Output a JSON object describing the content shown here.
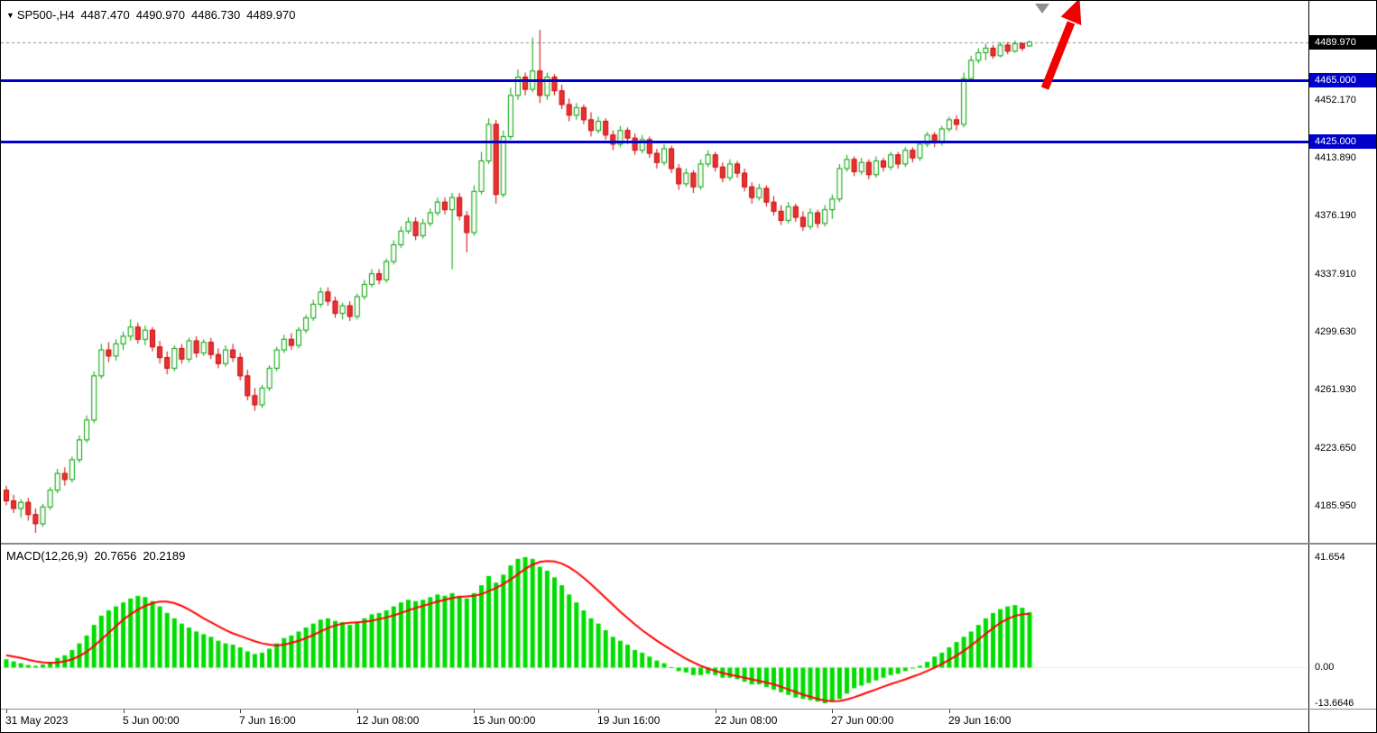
{
  "info_line": {
    "symbol_period": "SP500-,H4",
    "open": "4487.470",
    "high": "4490.970",
    "low": "4486.730",
    "close": "4489.970"
  },
  "indicator_label": {
    "name": "MACD(12,26,9)",
    "main_value": "20.7656",
    "signal_value": "20.2189"
  },
  "icons": {
    "symbol_marker": "symbol-triangle-icon",
    "trend_arrow_color": "#F20000",
    "scroll_marker_color": "#8f8f8f"
  },
  "chart_data": [
    {
      "type": "candlestick",
      "title": "SP500-,H4",
      "ylim": [
        4161.5,
        4517.0
      ],
      "grid": false,
      "current_price": {
        "text": "4489.970",
        "value": 4489.97,
        "badge_bg": "#000000",
        "badge_fg": "#ffffff",
        "line_style": "dashed-gray"
      },
      "levels": [
        {
          "text": "4465.000",
          "value": 4465.0,
          "color": "#0000CD"
        },
        {
          "text": "4425.000",
          "value": 4425.0,
          "color": "#0000CD"
        }
      ],
      "y_ticks": [
        {
          "text": "4452.170",
          "value": 4452.17
        },
        {
          "text": "4413.890",
          "value": 4413.89
        },
        {
          "text": "4376.190",
          "value": 4376.19
        },
        {
          "text": "4337.910",
          "value": 4337.91
        },
        {
          "text": "4299.630",
          "value": 4299.63
        },
        {
          "text": "4261.930",
          "value": 4261.93
        },
        {
          "text": "4223.650",
          "value": 4223.65
        },
        {
          "text": "4185.950",
          "value": 4185.95
        }
      ],
      "x_ticks": [
        {
          "text": "31 May 2023",
          "bar": 0
        },
        {
          "text": "5 Jun 00:00",
          "bar": 16
        },
        {
          "text": "7 Jun 16:00",
          "bar": 32
        },
        {
          "text": "12 Jun 08:00",
          "bar": 48
        },
        {
          "text": "15 Jun 00:00",
          "bar": 64
        },
        {
          "text": "19 Jun 16:00",
          "bar": 81
        },
        {
          "text": "22 Jun 08:00",
          "bar": 97
        },
        {
          "text": "27 Jun 00:00",
          "bar": 113
        },
        {
          "text": "29 Jun 16:00",
          "bar": 129
        }
      ],
      "colors": {
        "up_body": "#ffffff",
        "up_edge": "#00A000",
        "down_body": "#E83232",
        "down_edge": "#C80000",
        "price_line": "#8a8a8a"
      },
      "ohlc": [
        [
          4196,
          4199,
          4186,
          4189
        ],
        [
          4189,
          4193,
          4181,
          4184
        ],
        [
          4184,
          4190,
          4178,
          4188
        ],
        [
          4188,
          4191,
          4176,
          4180
        ],
        [
          4180,
          4184,
          4168,
          4174
        ],
        [
          4174,
          4187,
          4172,
          4185
        ],
        [
          4185,
          4198,
          4183,
          4196
        ],
        [
          4196,
          4210,
          4194,
          4207
        ],
        [
          4207,
          4211,
          4199,
          4203
        ],
        [
          4203,
          4218,
          4201,
          4216
        ],
        [
          4216,
          4232,
          4214,
          4229
        ],
        [
          4229,
          4245,
          4227,
          4242
        ],
        [
          4242,
          4274,
          4240,
          4271
        ],
        [
          4271,
          4292,
          4269,
          4288
        ],
        [
          4288,
          4293,
          4280,
          4284
        ],
        [
          4284,
          4295,
          4281,
          4292
        ],
        [
          4292,
          4300,
          4288,
          4297
        ],
        [
          4297,
          4308,
          4294,
          4303
        ],
        [
          4303,
          4306,
          4292,
          4295
        ],
        [
          4295,
          4304,
          4291,
          4301
        ],
        [
          4301,
          4303,
          4287,
          4290
        ],
        [
          4290,
          4294,
          4279,
          4283
        ],
        [
          4283,
          4287,
          4272,
          4276
        ],
        [
          4276,
          4291,
          4274,
          4289
        ],
        [
          4289,
          4292,
          4279,
          4282
        ],
        [
          4282,
          4296,
          4280,
          4294
        ],
        [
          4294,
          4297,
          4283,
          4286
        ],
        [
          4286,
          4295,
          4284,
          4293
        ],
        [
          4293,
          4296,
          4282,
          4285
        ],
        [
          4285,
          4289,
          4276,
          4279
        ],
        [
          4279,
          4291,
          4277,
          4288
        ],
        [
          4288,
          4292,
          4280,
          4283
        ],
        [
          4283,
          4286,
          4268,
          4271
        ],
        [
          4271,
          4275,
          4255,
          4258
        ],
        [
          4258,
          4263,
          4248,
          4252
        ],
        [
          4252,
          4265,
          4250,
          4263
        ],
        [
          4263,
          4278,
          4261,
          4276
        ],
        [
          4276,
          4290,
          4274,
          4288
        ],
        [
          4288,
          4298,
          4286,
          4295
        ],
        [
          4295,
          4299,
          4288,
          4291
        ],
        [
          4291,
          4303,
          4289,
          4301
        ],
        [
          4301,
          4311,
          4299,
          4309
        ],
        [
          4309,
          4321,
          4307,
          4318
        ],
        [
          4318,
          4329,
          4316,
          4326
        ],
        [
          4326,
          4329,
          4317,
          4320
        ],
        [
          4320,
          4323,
          4309,
          4312
        ],
        [
          4312,
          4319,
          4308,
          4317
        ],
        [
          4317,
          4320,
          4307,
          4310
        ],
        [
          4310,
          4325,
          4308,
          4323
        ],
        [
          4323,
          4334,
          4321,
          4331
        ],
        [
          4331,
          4341,
          4329,
          4338
        ],
        [
          4338,
          4341,
          4331,
          4334
        ],
        [
          4334,
          4348,
          4332,
          4346
        ],
        [
          4346,
          4360,
          4344,
          4357
        ],
        [
          4357,
          4369,
          4355,
          4366
        ],
        [
          4366,
          4375,
          4364,
          4372
        ],
        [
          4372,
          4375,
          4360,
          4363
        ],
        [
          4363,
          4374,
          4361,
          4371
        ],
        [
          4371,
          4381,
          4369,
          4378
        ],
        [
          4378,
          4388,
          4376,
          4385
        ],
        [
          4385,
          4388,
          4377,
          4380
        ],
        [
          4380,
          4391,
          4341,
          4388
        ],
        [
          4388,
          4391,
          4373,
          4376
        ],
        [
          4376,
          4379,
          4352,
          4365
        ],
        [
          4365,
          4396,
          4363,
          4392
        ],
        [
          4392,
          4418,
          4390,
          4412
        ],
        [
          4412,
          4440,
          4410,
          4436
        ],
        [
          4436,
          4439,
          4384,
          4390
        ],
        [
          4390,
          4432,
          4388,
          4428
        ],
        [
          4428,
          4460,
          4426,
          4455
        ],
        [
          4455,
          4472,
          4452,
          4467
        ],
        [
          4467,
          4470,
          4455,
          4459
        ],
        [
          4459,
          4493,
          4457,
          4471
        ],
        [
          4471,
          4498,
          4450,
          4455
        ],
        [
          4455,
          4470,
          4452,
          4467
        ],
        [
          4467,
          4469,
          4455,
          4458
        ],
        [
          4458,
          4462,
          4446,
          4449
        ],
        [
          4449,
          4453,
          4438,
          4442
        ],
        [
          4442,
          4450,
          4439,
          4447
        ],
        [
          4447,
          4449,
          4436,
          4439
        ],
        [
          4439,
          4444,
          4428,
          4432
        ],
        [
          4432,
          4441,
          4430,
          4438
        ],
        [
          4438,
          4440,
          4426,
          4429
        ],
        [
          4429,
          4432,
          4419,
          4423
        ],
        [
          4423,
          4435,
          4421,
          4432
        ],
        [
          4432,
          4434,
          4423,
          4427
        ],
        [
          4427,
          4430,
          4416,
          4419
        ],
        [
          4419,
          4429,
          4417,
          4426
        ],
        [
          4426,
          4428,
          4414,
          4417
        ],
        [
          4417,
          4420,
          4407,
          4411
        ],
        [
          4411,
          4423,
          4409,
          4420
        ],
        [
          4420,
          4422,
          4404,
          4407
        ],
        [
          4407,
          4410,
          4393,
          4397
        ],
        [
          4397,
          4407,
          4395,
          4404
        ],
        [
          4404,
          4406,
          4391,
          4395
        ],
        [
          4395,
          4413,
          4393,
          4410
        ],
        [
          4410,
          4419,
          4408,
          4416
        ],
        [
          4416,
          4418,
          4405,
          4408
        ],
        [
          4408,
          4411,
          4398,
          4401
        ],
        [
          4401,
          4413,
          4399,
          4410
        ],
        [
          4410,
          4412,
          4401,
          4404
        ],
        [
          4404,
          4407,
          4392,
          4395
        ],
        [
          4395,
          4398,
          4384,
          4388
        ],
        [
          4388,
          4397,
          4386,
          4394
        ],
        [
          4394,
          4396,
          4382,
          4385
        ],
        [
          4385,
          4389,
          4376,
          4379
        ],
        [
          4379,
          4383,
          4370,
          4373
        ],
        [
          4373,
          4385,
          4371,
          4382
        ],
        [
          4382,
          4384,
          4372,
          4375
        ],
        [
          4375,
          4379,
          4366,
          4369
        ],
        [
          4369,
          4381,
          4367,
          4378
        ],
        [
          4378,
          4380,
          4368,
          4371
        ],
        [
          4371,
          4383,
          4369,
          4380
        ],
        [
          4380,
          4390,
          4374,
          4387
        ],
        [
          4387,
          4410,
          4385,
          4407
        ],
        [
          4407,
          4416,
          4405,
          4413
        ],
        [
          4413,
          4415,
          4402,
          4405
        ],
        [
          4405,
          4414,
          4403,
          4411
        ],
        [
          4411,
          4413,
          4400,
          4403
        ],
        [
          4403,
          4415,
          4401,
          4412
        ],
        [
          4412,
          4414,
          4405,
          4408
        ],
        [
          4408,
          4418,
          4406,
          4416
        ],
        [
          4416,
          4418,
          4407,
          4410
        ],
        [
          4410,
          4421,
          4408,
          4419
        ],
        [
          4419,
          4421,
          4411,
          4414
        ],
        [
          4414,
          4425,
          4412,
          4423
        ],
        [
          4423,
          4431,
          4421,
          4429
        ],
        [
          4429,
          4431,
          4421,
          4424
        ],
        [
          4424,
          4435,
          4422,
          4433
        ],
        [
          4433,
          4441,
          4431,
          4439
        ],
        [
          4439,
          4442,
          4432,
          4436
        ],
        [
          4436,
          4470,
          4434,
          4466
        ],
        [
          4466,
          4481,
          4464,
          4478
        ],
        [
          4478,
          4486,
          4476,
          4483
        ],
        [
          4483,
          4489,
          4478,
          4486
        ],
        [
          4486,
          4488,
          4479,
          4481
        ],
        [
          4481,
          4490,
          4480,
          4488
        ],
        [
          4488,
          4490,
          4482,
          4484
        ],
        [
          4484,
          4491,
          4483,
          4489
        ],
        [
          4489,
          4490,
          4484,
          4486
        ],
        [
          4487.47,
          4490.97,
          4486.73,
          4489.97
        ]
      ]
    },
    {
      "type": "macd",
      "label": "MACD(12,26,9)",
      "last_main": 20.7656,
      "last_signal": 20.2189,
      "ylim": [
        -15.7,
        46.4
      ],
      "y_ticks": [
        {
          "text": "41.654",
          "value": 41.654
        },
        {
          "text": "0.00",
          "value": 0.0
        },
        {
          "text": "-13.6646",
          "value": -13.6646
        }
      ],
      "colors": {
        "histogram": "#00DC00",
        "signal": "#FF0000",
        "zero_line": "#c8c8c8"
      },
      "histogram": [
        3,
        2.2,
        1.5,
        0.8,
        0.5,
        1,
        2,
        3.5,
        4.5,
        6.5,
        9,
        12,
        16,
        19.5,
        21.5,
        23,
        24.5,
        26,
        27,
        26.5,
        25,
        23,
        20.5,
        18.5,
        16.5,
        15,
        13.5,
        12.5,
        11.5,
        10,
        9,
        8.5,
        7.5,
        6,
        5,
        5.5,
        7,
        9,
        11,
        12,
        13.5,
        15,
        16.5,
        18,
        18.5,
        17.5,
        17,
        16,
        17,
        18.5,
        20,
        20.5,
        21.5,
        23,
        24.5,
        25.5,
        25,
        25.5,
        26.5,
        27.5,
        27,
        28,
        27,
        26,
        28,
        31,
        34.5,
        32,
        35,
        38.5,
        41,
        41.654,
        41,
        38,
        36.5,
        34,
        31,
        27.5,
        24.5,
        21.5,
        18.5,
        16.5,
        14,
        11.5,
        10,
        8.5,
        6.5,
        5.5,
        4,
        2.5,
        1.5,
        0,
        -1.5,
        -2,
        -3,
        -3,
        -2.5,
        -3,
        -4,
        -4,
        -4.5,
        -5.5,
        -6.5,
        -6.5,
        -7.5,
        -8.5,
        -9.5,
        -10.5,
        -11.5,
        -12,
        -12.5,
        -13,
        -13.6646,
        -13,
        -12,
        -10,
        -8,
        -7,
        -6,
        -5,
        -4,
        -3,
        -2.5,
        -1.5,
        -0.5,
        0.5,
        2,
        4,
        5.5,
        7.5,
        9.5,
        11.5,
        13.5,
        16,
        18.5,
        20.5,
        22,
        23,
        23.5,
        22.5,
        20.7656
      ],
      "signal": [
        4.5,
        4,
        3.5,
        2.8,
        2.2,
        1.8,
        1.6,
        1.8,
        2.2,
        3,
        4.2,
        5.8,
        8,
        10.5,
        13,
        15.5,
        18,
        20,
        21.8,
        23.2,
        24.2,
        24.8,
        24.8,
        24.2,
        23.2,
        21.8,
        20.2,
        18.5,
        17,
        15.5,
        14,
        12.8,
        11.8,
        10.8,
        9.8,
        9,
        8.5,
        8.2,
        8.5,
        9.2,
        10,
        11,
        12.2,
        13.5,
        14.8,
        15.8,
        16.5,
        16.8,
        17,
        17.2,
        17.6,
        18.2,
        18.8,
        19.6,
        20.5,
        21.5,
        22.4,
        23.2,
        24,
        24.8,
        25.5,
        26.2,
        26.6,
        26.8,
        27,
        27.6,
        28.8,
        30,
        31.4,
        33.2,
        35.2,
        37.2,
        38.8,
        39.8,
        40.2,
        40,
        39.2,
        37.8,
        36,
        33.8,
        31.4,
        28.8,
        26.2,
        23.6,
        21,
        18.6,
        16.2,
        14,
        12,
        10,
        8.2,
        6.5,
        4.8,
        3.2,
        1.8,
        0.5,
        -0.5,
        -1.4,
        -2.2,
        -2.8,
        -3.4,
        -4,
        -4.6,
        -5.2,
        -5.8,
        -6.5,
        -7.4,
        -8.4,
        -9.4,
        -10.4,
        -11.2,
        -12,
        -12.6,
        -12.9,
        -12.8,
        -12.2,
        -11.4,
        -10.4,
        -9.4,
        -8.4,
        -7.4,
        -6.4,
        -5.5,
        -4.6,
        -3.6,
        -2.6,
        -1.4,
        -0.2,
        1.2,
        2.8,
        4.4,
        6.2,
        8.2,
        10.4,
        12.6,
        14.8,
        16.8,
        18.3,
        19.4,
        20,
        20.2189
      ]
    }
  ]
}
